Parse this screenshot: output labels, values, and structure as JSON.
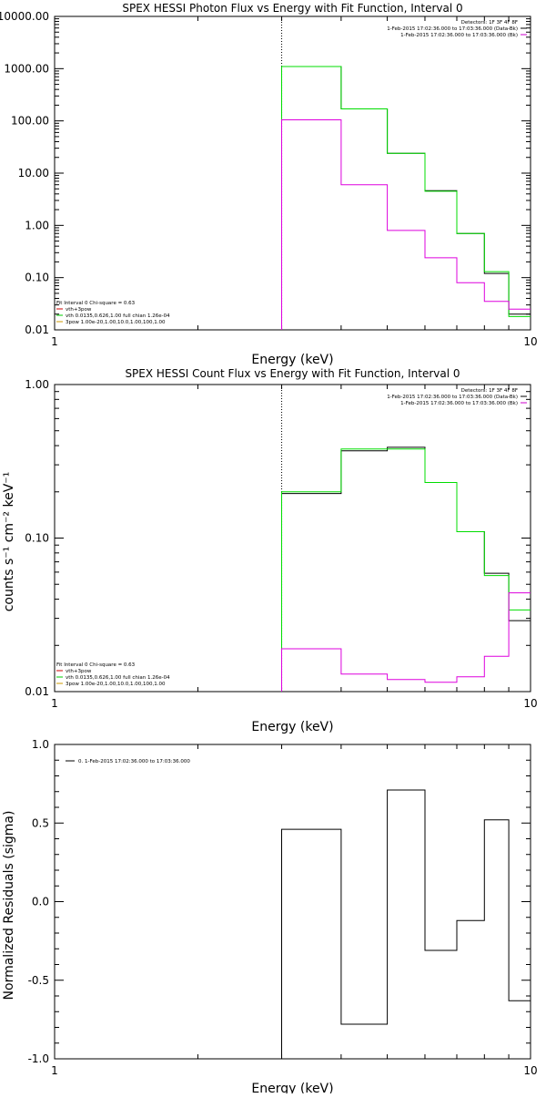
{
  "chart_data": [
    {
      "type": "line",
      "title": "SPEX HESSI Photon Flux vs Energy with Fit Function, Interval 0",
      "xlabel": "Energy (keV)",
      "ylabel": "",
      "x_scale": "log",
      "y_scale": "log",
      "xlim": [
        1,
        10
      ],
      "ylim": [
        0.01,
        10000
      ],
      "x_ticks": [
        {
          "v": 1,
          "label": "1"
        },
        {
          "v": 10,
          "label": "10"
        }
      ],
      "y_ticks": [
        {
          "v": 0.01,
          "label": "0.01"
        },
        {
          "v": 0.1,
          "label": "0.10"
        },
        {
          "v": 1,
          "label": "1.00"
        },
        {
          "v": 10,
          "label": "10.00"
        },
        {
          "v": 100,
          "label": "100.00"
        },
        {
          "v": 1000,
          "label": "1000.00"
        },
        {
          "v": 10000,
          "label": "10000.00"
        }
      ],
      "vline": 3,
      "legend_top": [
        "Detectors: 1F 3F 4F 8F",
        "1-Feb-2015 17:02:36.000 to 17:03:36.000 (Data-Bk)",
        "1-Feb-2015 17:02:36.000 to 17:03:36.000 (Bk)"
      ],
      "legend_top_colors": [
        "",
        "#000000",
        "#cc00cc"
      ],
      "legend_bottom": [
        "Fit Interval 0   Chi-square = 0.63",
        "vth+3pow",
        "vth 0.0135,0.626,1.00  full chian 1.26e-04",
        "3pow 1.00e-20,1.00,10.0,1.00,100,1.00"
      ],
      "legend_bottom_colors": [
        "",
        "#cc0000",
        "#00cc00",
        "#cc9900"
      ],
      "series": [
        {
          "color": "#000000",
          "edges": [
            3,
            4,
            5,
            6,
            7,
            8,
            9,
            10
          ],
          "values": [
            1100,
            170,
            24,
            4.6,
            0.7,
            0.12,
            0.02
          ]
        },
        {
          "color": "#00dd00",
          "edges": [
            3,
            4,
            5,
            6,
            7,
            8,
            9,
            10
          ],
          "values": [
            1100,
            170,
            24,
            4.5,
            0.7,
            0.13,
            0.018
          ]
        },
        {
          "color": "#dd00dd",
          "edges": [
            3,
            4,
            5,
            6,
            7,
            8,
            9,
            10
          ],
          "values": [
            105,
            6,
            0.8,
            0.24,
            0.08,
            0.035,
            0.025
          ]
        }
      ]
    },
    {
      "type": "line",
      "title": "SPEX HESSI Count Flux vs Energy with Fit Function, Interval 0",
      "xlabel": "Energy (keV)",
      "ylabel": "counts s⁻¹ cm⁻² keV⁻¹",
      "x_scale": "log",
      "y_scale": "log",
      "xlim": [
        1,
        10
      ],
      "ylim": [
        0.01,
        1
      ],
      "x_ticks": [
        {
          "v": 1,
          "label": "1"
        },
        {
          "v": 10,
          "label": "10"
        }
      ],
      "y_ticks": [
        {
          "v": 0.01,
          "label": "0.01"
        },
        {
          "v": 0.1,
          "label": "0.10"
        },
        {
          "v": 1,
          "label": "1.00"
        }
      ],
      "vline": 3,
      "legend_top": [
        "Detectors: 1F 3F 4F 8F",
        "1-Feb-2015 17:02:36.000 to 17:03:36.000 (Data-Bk)",
        "1-Feb-2015 17:02:36.000 to 17:03:36.000 (Bk)"
      ],
      "legend_top_colors": [
        "",
        "#000000",
        "#cc00cc"
      ],
      "legend_bottom": [
        "Fit Interval 0   Chi-square = 0.63",
        "vth+3pow",
        "vth 0.0135,0.626,1.00  full chian 1.26e-04",
        "3pow 1.00e-20,1.00,10.0,1.00,100,1.00"
      ],
      "legend_bottom_colors": [
        "",
        "#cc0000",
        "#00cc00",
        "#cc9900"
      ],
      "series": [
        {
          "color": "#000000",
          "edges": [
            3,
            4,
            5,
            6,
            7,
            8,
            9,
            10
          ],
          "values": [
            0.195,
            0.37,
            0.39,
            0.23,
            0.11,
            0.059,
            0.029
          ]
        },
        {
          "color": "#00dd00",
          "edges": [
            3,
            4,
            5,
            6,
            7,
            8,
            9,
            10
          ],
          "values": [
            0.2,
            0.38,
            0.38,
            0.23,
            0.11,
            0.057,
            0.034
          ]
        },
        {
          "color": "#dd00dd",
          "edges": [
            3,
            4,
            5,
            6,
            7,
            8,
            9,
            10
          ],
          "values": [
            0.019,
            0.013,
            0.012,
            0.0115,
            0.0125,
            0.017,
            0.044
          ]
        }
      ]
    },
    {
      "type": "line",
      "title": "",
      "xlabel": "Energy (keV)",
      "ylabel": "Normalized Residuals (sigma)",
      "x_scale": "log",
      "y_scale": "linear",
      "xlim": [
        1,
        10
      ],
      "ylim": [
        -1.0,
        1.0
      ],
      "x_ticks": [
        {
          "v": 1,
          "label": "1"
        },
        {
          "v": 10,
          "label": "10"
        }
      ],
      "y_ticks": [
        {
          "v": -1,
          "label": "-1.0"
        },
        {
          "v": -0.5,
          "label": "-0.5"
        },
        {
          "v": 0,
          "label": "0.0"
        },
        {
          "v": 0.5,
          "label": "0.5"
        },
        {
          "v": 1,
          "label": "1.0"
        }
      ],
      "legend_top": [
        "0.  1-Feb-2015 17:02:36.000 to 17:03:36.000"
      ],
      "legend_top_colors": [
        "#000000"
      ],
      "series": [
        {
          "color": "#000000",
          "edges": [
            3,
            4,
            5,
            6,
            7,
            8,
            9,
            10
          ],
          "values": [
            0.46,
            -0.78,
            0.71,
            -0.31,
            -0.12,
            0.52,
            -0.63
          ],
          "start_from": -1.0
        }
      ]
    }
  ]
}
